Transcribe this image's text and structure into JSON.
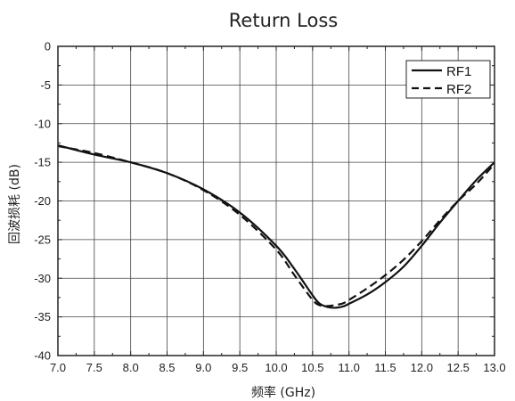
{
  "chart_data": {
    "type": "line",
    "title": "Return Loss",
    "xlabel": "频率 (GHz)",
    "ylabel": "回波损耗 (dB)",
    "xlim": [
      7.0,
      13.0
    ],
    "ylim": [
      -40,
      0
    ],
    "xticks": [
      "7.0",
      "7.5",
      "8.0",
      "8.5",
      "9.0",
      "9.5",
      "10.0",
      "10.5",
      "11.0",
      "11.5",
      "12.0",
      "12.5",
      "13.0"
    ],
    "yticks": [
      "0",
      "-5",
      "-10",
      "-15",
      "-20",
      "-25",
      "-30",
      "-35",
      "-40"
    ],
    "grid": true,
    "legend_position": "top-right",
    "series": [
      {
        "name": "RF1",
        "style": "solid",
        "color": "#111111",
        "points": [
          [
            7.0,
            -12.8
          ],
          [
            7.5,
            -14.0
          ],
          [
            8.0,
            -15.0
          ],
          [
            8.5,
            -16.4
          ],
          [
            9.0,
            -18.5
          ],
          [
            9.5,
            -21.5
          ],
          [
            10.0,
            -25.8
          ],
          [
            10.25,
            -28.8
          ],
          [
            10.5,
            -32.2
          ],
          [
            10.6,
            -33.3
          ],
          [
            10.75,
            -33.8
          ],
          [
            10.9,
            -33.7
          ],
          [
            11.0,
            -33.3
          ],
          [
            11.25,
            -32.1
          ],
          [
            11.5,
            -30.5
          ],
          [
            11.75,
            -28.5
          ],
          [
            12.0,
            -25.8
          ],
          [
            12.25,
            -22.8
          ],
          [
            12.5,
            -20.0
          ],
          [
            12.75,
            -17.3
          ],
          [
            13.0,
            -15.0
          ]
        ]
      },
      {
        "name": "RF2",
        "style": "dashed",
        "color": "#111111",
        "points": [
          [
            7.0,
            -12.9
          ],
          [
            7.5,
            -13.8
          ],
          [
            8.0,
            -15.0
          ],
          [
            8.5,
            -16.4
          ],
          [
            9.0,
            -18.6
          ],
          [
            9.5,
            -21.8
          ],
          [
            10.0,
            -26.3
          ],
          [
            10.25,
            -29.6
          ],
          [
            10.5,
            -32.8
          ],
          [
            10.6,
            -33.5
          ],
          [
            10.7,
            -33.6
          ],
          [
            10.9,
            -33.3
          ],
          [
            11.0,
            -32.8
          ],
          [
            11.25,
            -31.3
          ],
          [
            11.5,
            -29.6
          ],
          [
            11.75,
            -27.6
          ],
          [
            12.0,
            -25.2
          ],
          [
            12.25,
            -22.5
          ],
          [
            12.5,
            -20.0
          ],
          [
            12.75,
            -17.8
          ],
          [
            13.0,
            -15.2
          ]
        ]
      }
    ]
  }
}
